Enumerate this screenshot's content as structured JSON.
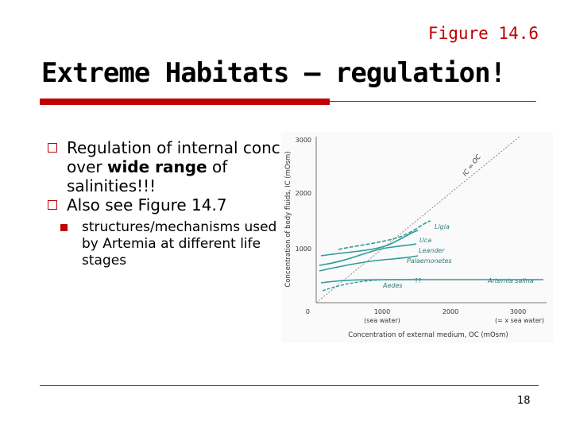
{
  "header": {
    "figure_ref": "Figure 14.6"
  },
  "title": "Extreme Habitats – regulation!",
  "bullets": [
    {
      "pre": "Regulation of internal conc over ",
      "bold": "wide range",
      "post": " of salinities!!!"
    },
    {
      "text": "Also see Figure 14.7"
    }
  ],
  "sub_bullet": "structures/mechanisms used by Artemia at different life stages",
  "figure": {
    "ylabel": "Concentration of body fluids, IC (mOsm)",
    "xlabel": "Concentration of external medium, OC (mOsm)",
    "y_ticks": [
      "3000",
      "2000",
      "1000",
      "0"
    ],
    "x_ticks": [
      "1000",
      "2000",
      "3000"
    ],
    "x_tick_sub": [
      "(sea water)",
      "(= x sea water)"
    ],
    "diag_label": "IC = OC",
    "labels": [
      "Ligia",
      "Uca",
      "Leander",
      "Palaemonetes",
      "Artemia salina",
      "Aedes",
      "??"
    ],
    "colors": {
      "curve": "#2e9a9a",
      "diagonal": "#888888",
      "axis": "#777777"
    }
  },
  "footer": {
    "page_number": "18"
  },
  "colors": {
    "accent": "#c00000"
  }
}
